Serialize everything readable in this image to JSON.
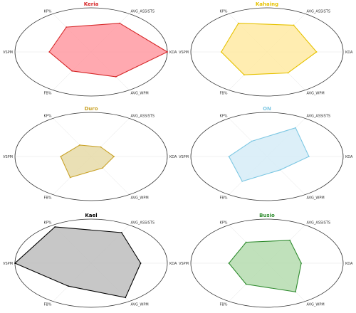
{
  "chart_data": [
    {
      "type": "radar",
      "title": "Keria",
      "color": "#d62728",
      "fill": "#ff9aa2",
      "axes": [
        "KDA",
        "AVG_ASSISTS",
        "KP%",
        "VSPM",
        "FB%",
        "AVG_WPM"
      ],
      "values": [
        1.0,
        0.75,
        0.65,
        0.55,
        0.5,
        0.65
      ],
      "rlim": [
        0,
        1
      ],
      "grid": false
    },
    {
      "type": "radar",
      "title": "Kahaing",
      "color": "#e6c200",
      "fill": "#ffeaa3",
      "axes": [
        "KDA",
        "AVG_ASSISTS",
        "KP%",
        "VSPM",
        "FB%",
        "AVG_WPM"
      ],
      "values": [
        0.65,
        0.7,
        0.75,
        0.6,
        0.6,
        0.55
      ],
      "rlim": [
        0,
        1
      ],
      "grid": false
    },
    {
      "type": "radar",
      "title": "Duro",
      "color": "#c9a227",
      "fill": "#e6dba8",
      "axes": [
        "KDA",
        "AVG_ASSISTS",
        "KP%",
        "VSPM",
        "FB%",
        "AVG_WPM"
      ],
      "values": [
        0.3,
        0.25,
        0.3,
        0.4,
        0.55,
        0.3
      ],
      "rlim": [
        0,
        1
      ],
      "grid": false
    },
    {
      "type": "radar",
      "title": "ON",
      "color": "#7ec8e3",
      "fill": "#d6ecf7",
      "axes": [
        "KDA",
        "AVG_ASSISTS",
        "KP%",
        "VSPM",
        "FB%",
        "AVG_WPM"
      ],
      "values": [
        0.55,
        0.75,
        0.4,
        0.5,
        0.65,
        0.35
      ],
      "rlim": [
        0,
        1
      ],
      "grid": false
    },
    {
      "type": "radar",
      "title": "Kael",
      "color": "#000000",
      "fill": "#bdbdbd",
      "axes": [
        "KDA",
        "AVG_ASSISTS",
        "KP%",
        "VSPM",
        "FB%",
        "AVG_WPM"
      ],
      "values": [
        0.65,
        0.8,
        0.95,
        1.0,
        0.6,
        0.9
      ],
      "rlim": [
        0,
        1
      ],
      "grid": false
    },
    {
      "type": "radar",
      "title": "Busio",
      "color": "#2e8b2e",
      "fill": "#b5dcaf",
      "axes": [
        "KDA",
        "AVG_ASSISTS",
        "KP%",
        "VSPM",
        "FB%",
        "AVG_WPM"
      ],
      "values": [
        0.45,
        0.6,
        0.55,
        0.5,
        0.55,
        0.75
      ],
      "rlim": [
        0,
        1
      ],
      "grid": false
    }
  ]
}
